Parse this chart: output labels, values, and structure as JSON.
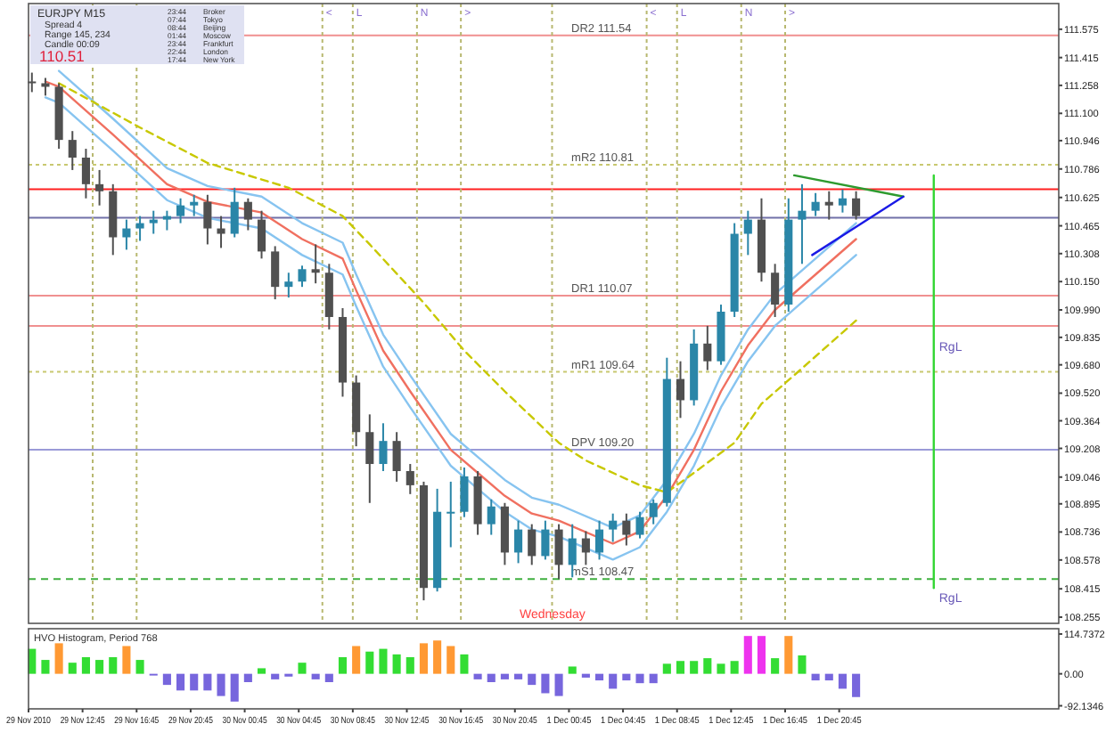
{
  "chart_data": [
    {
      "type": "candlestick",
      "title": "EURJPY  M15",
      "tick_labels": "y",
      "xlim": [
        "2010-11-29T08:45",
        "2010-12-02T13:00"
      ],
      "ylim": [
        108.22,
        111.72
      ],
      "yticks": [
        111.575,
        111.415,
        111.258,
        {
          "value": 111.1,
          "label": "111.100"
        },
        110.946,
        110.786,
        110.625,
        110.465,
        110.308,
        {
          "value": 110.15,
          "label": "110.150"
        },
        {
          "value": 109.99,
          "label": "109.990"
        },
        109.835,
        {
          "value": 109.68,
          "label": "109.680"
        },
        {
          "value": 109.52,
          "label": "109.520"
        },
        109.364,
        109.208,
        109.046,
        108.895,
        108.736,
        108.578,
        108.415,
        108.255
      ],
      "colors": [
        "#505050",
        "#505050",
        "#505050",
        "#505050",
        "#505050",
        "#505050",
        "#505050",
        "#2a86a8",
        "#2a86a8",
        "#2a86a8",
        "#2a86a8",
        "#2a86a8",
        "#2a86a8",
        "#505050",
        "#505050",
        "#2a86a8",
        "#505050",
        "#505050",
        "#505050",
        "#2a86a8",
        "#2a86a8",
        "#505050",
        "#505050",
        "#505050",
        "#505050",
        "#505050",
        "#2a86a8",
        "#505050",
        "#505050",
        "#505050",
        "#2a86a8",
        "#2a86a8",
        "#2a86a8",
        "#505050",
        "#2a86a8",
        "#505050",
        "#2a86a8",
        "#505050",
        "#2a86a8",
        "#505050",
        "#2a86a8",
        "#505050",
        "#2a86a8",
        "#2a86a8",
        "#505050",
        "#2a86a8",
        "#2a86a8",
        "#2a86a8",
        "#505050",
        "#2a86a8",
        "#505050",
        "#2a86a8",
        "#2a86a8",
        "#2a86a8",
        "#505050",
        "#505050",
        "#2a86a8",
        "#2a86a8",
        "#2a86a8",
        "#505050",
        "#2a86a8",
        "#505050"
      ],
      "x": [
        "2010-11-29T09:00",
        "2010-11-29T10:00",
        "2010-11-29T11:00",
        "2010-11-29T12:00",
        "2010-11-29T13:00",
        "2010-11-29T14:00",
        "2010-11-29T15:00",
        "2010-11-29T16:00",
        "2010-11-29T17:00",
        "2010-11-29T18:00",
        "2010-11-29T19:00",
        "2010-11-29T20:00",
        "2010-11-29T21:00",
        "2010-11-29T22:00",
        "2010-11-29T23:00",
        "2010-11-30T00:00",
        "2010-11-30T01:00",
        "2010-11-30T02:00",
        "2010-11-30T03:00",
        "2010-11-30T04:00",
        "2010-11-30T05:00",
        "2010-11-30T06:00",
        "2010-11-30T07:00",
        "2010-11-30T08:00",
        "2010-11-30T09:00",
        "2010-11-30T10:00",
        "2010-11-30T11:00",
        "2010-11-30T12:00",
        "2010-11-30T13:00",
        "2010-11-30T14:00",
        "2010-11-30T15:00",
        "2010-11-30T16:00",
        "2010-11-30T17:00",
        "2010-11-30T18:00",
        "2010-11-30T19:00",
        "2010-11-30T20:00",
        "2010-11-30T21:00",
        "2010-11-30T22:00",
        "2010-11-30T23:00",
        "2010-12-01T00:00",
        "2010-12-01T01:00",
        "2010-12-01T02:00",
        "2010-12-01T03:00",
        "2010-12-01T04:00",
        "2010-12-01T05:00",
        "2010-12-01T06:00",
        "2010-12-01T07:00",
        "2010-12-01T08:00",
        "2010-12-01T09:00",
        "2010-12-01T10:00",
        "2010-12-01T11:00",
        "2010-12-01T12:00",
        "2010-12-01T13:00",
        "2010-12-01T14:00",
        "2010-12-01T15:00",
        "2010-12-01T16:00",
        "2010-12-01T17:00",
        "2010-12-01T18:00",
        "2010-12-01T19:00",
        "2010-12-01T20:00",
        "2010-12-01T21:00",
        "2010-12-01T22:00"
      ],
      "ohlc": [
        [
          111.28,
          111.33,
          111.22,
          111.27
        ],
        [
          111.27,
          111.3,
          111.2,
          111.25
        ],
        [
          111.25,
          111.27,
          110.9,
          110.95
        ],
        [
          110.95,
          111.0,
          110.78,
          110.85
        ],
        [
          110.85,
          110.9,
          110.62,
          110.7
        ],
        [
          110.7,
          110.78,
          110.58,
          110.66
        ],
        [
          110.66,
          110.7,
          110.3,
          110.4
        ],
        [
          110.4,
          110.5,
          110.33,
          110.45
        ],
        [
          110.45,
          110.52,
          110.38,
          110.48
        ],
        [
          110.48,
          110.55,
          110.42,
          110.5
        ],
        [
          110.5,
          110.55,
          110.44,
          110.52
        ],
        [
          110.52,
          110.62,
          110.48,
          110.58
        ],
        [
          110.58,
          110.64,
          110.52,
          110.6
        ],
        [
          110.6,
          110.64,
          110.36,
          110.45
        ],
        [
          110.45,
          110.52,
          110.34,
          110.42
        ],
        [
          110.42,
          110.68,
          110.4,
          110.6
        ],
        [
          110.6,
          110.62,
          110.44,
          110.5
        ],
        [
          110.5,
          110.55,
          110.28,
          110.32
        ],
        [
          110.32,
          110.35,
          110.05,
          110.12
        ],
        [
          110.12,
          110.2,
          110.06,
          110.15
        ],
        [
          110.15,
          110.24,
          110.12,
          110.22
        ],
        [
          110.22,
          110.36,
          110.14,
          110.2
        ],
        [
          110.2,
          110.25,
          109.88,
          109.95
        ],
        [
          109.95,
          110.0,
          109.5,
          109.58
        ],
        [
          109.58,
          109.62,
          109.22,
          109.3
        ],
        [
          109.3,
          109.4,
          108.9,
          109.12
        ],
        [
          109.12,
          109.35,
          109.08,
          109.25
        ],
        [
          109.25,
          109.3,
          109.02,
          109.08
        ],
        [
          109.08,
          109.12,
          108.95,
          109.0
        ],
        [
          109.0,
          109.02,
          108.35,
          108.42
        ],
        [
          108.42,
          108.98,
          108.4,
          108.85
        ],
        [
          108.85,
          109.02,
          108.65,
          108.85
        ],
        [
          108.85,
          109.1,
          108.82,
          109.05
        ],
        [
          109.05,
          109.08,
          108.72,
          108.78
        ],
        [
          108.78,
          108.92,
          108.72,
          108.88
        ],
        [
          108.88,
          108.9,
          108.55,
          108.62
        ],
        [
          108.62,
          108.8,
          108.56,
          108.75
        ],
        [
          108.75,
          108.78,
          108.55,
          108.6
        ],
        [
          108.6,
          108.8,
          108.58,
          108.75
        ],
        [
          108.75,
          108.78,
          108.47,
          108.55
        ],
        [
          108.55,
          108.78,
          108.48,
          108.7
        ],
        [
          108.7,
          108.74,
          108.55,
          108.62
        ],
        [
          108.62,
          108.8,
          108.58,
          108.75
        ],
        [
          108.75,
          108.84,
          108.68,
          108.8
        ],
        [
          108.8,
          108.84,
          108.66,
          108.72
        ],
        [
          108.72,
          108.85,
          108.7,
          108.82
        ],
        [
          108.82,
          108.92,
          108.78,
          108.9
        ],
        [
          108.9,
          109.72,
          108.88,
          109.6
        ],
        [
          109.6,
          109.7,
          109.38,
          109.48
        ],
        [
          109.48,
          109.88,
          109.45,
          109.8
        ],
        [
          109.8,
          109.9,
          109.65,
          109.7
        ],
        [
          109.7,
          110.02,
          109.68,
          109.98
        ],
        [
          109.98,
          110.48,
          109.95,
          110.42
        ],
        [
          110.42,
          110.55,
          110.3,
          110.5
        ],
        [
          110.5,
          110.62,
          110.15,
          110.2
        ],
        [
          110.2,
          110.25,
          109.95,
          110.02
        ],
        [
          110.02,
          110.62,
          109.98,
          110.5
        ],
        [
          110.5,
          110.7,
          110.25,
          110.55
        ],
        [
          110.55,
          110.65,
          110.52,
          110.6
        ],
        [
          110.6,
          110.66,
          110.5,
          110.58
        ],
        [
          110.58,
          110.67,
          110.54,
          110.62
        ],
        [
          110.62,
          110.66,
          110.5,
          110.52
        ]
      ],
      "series": [
        {
          "type": "line",
          "color": "#87c4f0",
          "line_style": "solid",
          "x": [
            "2010-11-29T11:00",
            "2010-11-29T15:00",
            "2010-11-29T19:00",
            "2010-11-29T22:00",
            "2010-11-30T02:00",
            "2010-11-30T05:00",
            "2010-11-30T08:00",
            "2010-11-30T09:00",
            "2010-11-30T11:00",
            "2010-11-30T13:00",
            "2010-11-30T16:00",
            "2010-11-30T18:00",
            "2010-11-30T20:00",
            "2010-11-30T22:00",
            "2010-12-01T00:00",
            "2010-12-01T04:00",
            "2010-12-01T06:00",
            "2010-12-01T08:00",
            "2010-12-01T10:00",
            "2010-12-01T12:00",
            "2010-12-01T14:00",
            "2010-12-01T16:00",
            "2010-12-01T19:00",
            "2010-12-01T22:00"
          ],
          "values": [
            111.34,
            111.07,
            110.79,
            110.69,
            110.63,
            110.48,
            110.37,
            110.19,
            109.85,
            109.62,
            109.29,
            109.16,
            109.03,
            108.93,
            108.89,
            108.76,
            108.83,
            109.03,
            109.29,
            109.62,
            109.88,
            110.08,
            110.28,
            110.48
          ]
        },
        {
          "type": "line",
          "color": "#f07060",
          "line_style": "solid",
          "x": [
            "2010-11-29T10:00",
            "2010-11-29T11:00",
            "2010-11-29T15:00",
            "2010-11-29T19:00",
            "2010-11-29T22:00",
            "2010-11-30T02:00",
            "2010-11-30T05:00",
            "2010-11-30T08:00",
            "2010-11-30T09:00",
            "2010-11-30T11:00",
            "2010-11-30T13:00",
            "2010-11-30T16:00",
            "2010-11-30T18:00",
            "2010-11-30T20:00",
            "2010-11-30T22:00",
            "2010-12-01T00:00",
            "2010-12-01T04:00",
            "2010-12-01T06:00",
            "2010-12-01T08:00",
            "2010-12-01T10:00",
            "2010-12-01T12:00",
            "2010-12-01T14:00",
            "2010-12-01T16:00",
            "2010-12-01T19:00",
            "2010-12-01T22:00"
          ],
          "values": [
            111.28,
            111.25,
            110.98,
            110.7,
            110.6,
            110.54,
            110.39,
            110.28,
            110.1,
            109.76,
            109.53,
            109.2,
            109.07,
            108.94,
            108.84,
            108.8,
            108.67,
            108.74,
            108.94,
            109.2,
            109.53,
            109.79,
            109.99,
            110.19,
            110.39
          ]
        },
        {
          "type": "line",
          "color": "#87c4f0",
          "line_style": "solid",
          "x": [
            "2010-11-29T10:00",
            "2010-11-29T11:00",
            "2010-11-29T15:00",
            "2010-11-29T19:00",
            "2010-11-29T22:00",
            "2010-11-30T02:00",
            "2010-11-30T05:00",
            "2010-11-30T08:00",
            "2010-11-30T09:00",
            "2010-11-30T11:00",
            "2010-11-30T13:00",
            "2010-11-30T16:00",
            "2010-11-30T18:00",
            "2010-11-30T20:00",
            "2010-11-30T22:00",
            "2010-12-01T00:00",
            "2010-12-01T04:00",
            "2010-12-01T06:00",
            "2010-12-01T08:00",
            "2010-12-01T10:00",
            "2010-12-01T12:00",
            "2010-12-01T14:00",
            "2010-12-01T16:00",
            "2010-12-01T19:00",
            "2010-12-01T22:00"
          ],
          "values": [
            111.19,
            111.16,
            110.89,
            110.61,
            110.51,
            110.45,
            110.3,
            110.19,
            110.01,
            109.67,
            109.44,
            109.11,
            108.98,
            108.85,
            108.75,
            108.71,
            108.58,
            108.65,
            108.85,
            109.11,
            109.44,
            109.7,
            109.9,
            110.1,
            110.3
          ]
        },
        {
          "type": "line",
          "color": "#c8c800",
          "line_style": "dashed",
          "x": [
            "2010-11-29T11:00",
            "2010-11-29T17:00",
            "2010-11-29T22:00",
            "2010-11-30T04:00",
            "2010-11-30T08:00",
            "2010-11-30T10:00",
            "2010-11-30T14:00",
            "2010-11-30T17:00",
            "2010-11-30T20:00",
            "2010-12-01T00:00",
            "2010-12-01T02:00",
            "2010-12-01T06:00",
            "2010-12-01T08:00",
            "2010-12-01T10:00",
            "2010-12-01T13:00",
            "2010-12-01T15:00",
            "2010-12-01T18:00",
            "2010-12-01T22:00"
          ],
          "values": [
            111.27,
            111.02,
            110.82,
            110.68,
            110.52,
            110.36,
            110.03,
            109.76,
            109.53,
            109.24,
            109.14,
            109.0,
            108.96,
            109.07,
            109.24,
            109.46,
            109.66,
            109.93
          ]
        },
        {
          "type": "line",
          "color": "#2e9a2e",
          "line_style": "solid",
          "x": [
            "2010-12-01T17:25",
            "2010-12-02T01:30"
          ],
          "values": [
            110.75,
            110.63
          ]
        },
        {
          "type": "line",
          "color": "#1a1ae6",
          "line_style": "solid",
          "x": [
            "2010-12-01T18:45",
            "2010-12-02T01:30"
          ],
          "values": [
            110.3,
            110.63
          ]
        },
        {
          "type": "line",
          "color": "#33d633",
          "line_style": "solid",
          "x": [
            "2010-12-02T03:45",
            "2010-12-02T03:45"
          ],
          "values": [
            110.75,
            108.42
          ]
        }
      ],
      "ref_lines": [
        {
          "axis": "y",
          "value": 111.54,
          "label": "DR2  111.54",
          "color": "#f09090",
          "line_style": "solid"
        },
        {
          "axis": "y",
          "value": 110.81,
          "label": "mR2  110.81",
          "color": "#c8c870",
          "line_style": "dotted"
        },
        {
          "axis": "y",
          "value": 110.671,
          "color": "#ff2020",
          "line_style": "solid"
        },
        {
          "axis": "y",
          "value": 110.51,
          "color": "#7070a8",
          "line_style": "solid"
        },
        {
          "axis": "y",
          "value": 110.07,
          "label": "DR1  110.07",
          "color": "#f09090",
          "line_style": "solid"
        },
        {
          "axis": "y",
          "value": 109.9,
          "color": "#f09090",
          "line_style": "solid"
        },
        {
          "axis": "y",
          "value": 109.64,
          "label": "mR1  109.64",
          "color": "#c8c870",
          "line_style": "dotted"
        },
        {
          "axis": "y",
          "value": 109.2,
          "label": "DPV  109.20",
          "color": "#9a9ad8",
          "line_style": "solid"
        },
        {
          "axis": "y",
          "value": 108.47,
          "label": "mS1  108.47",
          "color": "#40b040",
          "line_style": "dashed"
        },
        {
          "axis": "x",
          "value": "2010-11-29T13:30",
          "color": "#b8b870",
          "line_style": "dotted"
        },
        {
          "axis": "x",
          "value": "2010-11-29T16:45",
          "color": "#b8b870",
          "line_style": "dotted"
        },
        {
          "axis": "x",
          "value": "2010-11-30T06:30",
          "label": "<",
          "color": "#b8b870",
          "line_style": "dotted"
        },
        {
          "axis": "x",
          "value": "2010-11-30T08:45",
          "label": "L",
          "color": "#b8b870",
          "line_style": "dotted"
        },
        {
          "axis": "x",
          "value": "2010-11-30T13:30",
          "label": "N",
          "color": "#b8b870",
          "line_style": "dotted"
        },
        {
          "axis": "x",
          "value": "2010-11-30T16:45",
          "label": ">",
          "color": "#b8b870",
          "line_style": "dotted"
        },
        {
          "axis": "x",
          "value": "2010-11-30T23:30",
          "color": "#b8b870",
          "line_style": "dotted"
        },
        {
          "axis": "x",
          "value": "2010-12-01T06:30",
          "label": "<",
          "color": "#b8b870",
          "line_style": "dotted"
        },
        {
          "axis": "x",
          "value": "2010-12-01T08:45",
          "label": "L",
          "color": "#b8b870",
          "line_style": "dotted"
        },
        {
          "axis": "x",
          "value": "2010-12-01T13:30",
          "label": "N",
          "color": "#b8b870",
          "line_style": "dotted"
        },
        {
          "axis": "x",
          "value": "2010-12-01T16:45",
          "label": ">",
          "color": "#b8b870",
          "line_style": "dotted"
        }
      ],
      "annotations": [
        "Spread  4",
        "Range  145, 234",
        "Candle  00:09",
        "110.51",
        "23:44 Broker",
        "07:44 Tokyo",
        "08:44 Beijing",
        "01:44 Moscow",
        "23:44 Frankfurt",
        "22:44 London",
        "17:44 New York",
        {
          "text": "Wednesday",
          "x": "2010-12-01T00:00",
          "y": 108.27
        },
        {
          "text": "RgL",
          "x": "2010-12-02T03:45",
          "y": 109.84
        },
        {
          "text": "RgL",
          "x": "2010-12-02T03:45",
          "y": 108.42
        }
      ]
    },
    {
      "type": "bar",
      "title": "HVO Histogram, Period 768",
      "xlim": [
        "2010-11-29T08:45",
        "2010-12-02T13:00"
      ],
      "xticks": [
        {
          "value": "2010-11-29T08:45",
          "label": "29 Nov 2010"
        },
        {
          "value": "2010-11-29T12:45",
          "label": "29 Nov 12:45"
        },
        {
          "value": "2010-11-29T16:45",
          "label": "29 Nov 16:45"
        },
        {
          "value": "2010-11-29T20:45",
          "label": "29 Nov 20:45"
        },
        {
          "value": "2010-11-30T00:45",
          "label": "30 Nov 00:45"
        },
        {
          "value": "2010-11-30T04:45",
          "label": "30 Nov 04:45"
        },
        {
          "value": "2010-11-30T08:45",
          "label": "30 Nov 08:45"
        },
        {
          "value": "2010-11-30T12:45",
          "label": "30 Nov 12:45"
        },
        {
          "value": "2010-11-30T16:45",
          "label": "30 Nov 16:45"
        },
        {
          "value": "2010-11-30T20:45",
          "label": "30 Nov 20:45"
        },
        {
          "value": "2010-12-01T00:45",
          "label": "1 Dec 00:45"
        },
        {
          "value": "2010-12-01T04:45",
          "label": "1 Dec 04:45"
        },
        {
          "value": "2010-12-01T08:45",
          "label": "1 Dec 08:45"
        },
        {
          "value": "2010-12-01T12:45",
          "label": "1 Dec 12:45"
        },
        {
          "value": "2010-12-01T16:45",
          "label": "1 Dec 16:45"
        },
        {
          "value": "2010-12-01T20:45",
          "label": "1 Dec 20:45"
        }
      ],
      "ylim": [
        -101,
        130
      ],
      "yticks": [
        114.7372,
        {
          "value": 0,
          "label": "0.00"
        },
        -92.1346
      ],
      "x": [
        "2010-11-29T09:00",
        "2010-11-29T10:00",
        "2010-11-29T11:00",
        "2010-11-29T12:00",
        "2010-11-29T13:00",
        "2010-11-29T14:00",
        "2010-11-29T15:00",
        "2010-11-29T16:00",
        "2010-11-29T17:00",
        "2010-11-29T18:00",
        "2010-11-29T19:00",
        "2010-11-29T20:00",
        "2010-11-29T21:00",
        "2010-11-29T22:00",
        "2010-11-29T23:00",
        "2010-11-30T00:00",
        "2010-11-30T01:00",
        "2010-11-30T02:00",
        "2010-11-30T03:00",
        "2010-11-30T04:00",
        "2010-11-30T05:00",
        "2010-11-30T06:00",
        "2010-11-30T07:00",
        "2010-11-30T08:00",
        "2010-11-30T09:00",
        "2010-11-30T10:00",
        "2010-11-30T11:00",
        "2010-11-30T12:00",
        "2010-11-30T13:00",
        "2010-11-30T14:00",
        "2010-11-30T15:00",
        "2010-11-30T16:00",
        "2010-11-30T17:00",
        "2010-11-30T18:00",
        "2010-11-30T19:00",
        "2010-11-30T20:00",
        "2010-11-30T21:00",
        "2010-11-30T22:00",
        "2010-11-30T23:00",
        "2010-12-01T00:00",
        "2010-12-01T01:00",
        "2010-12-01T02:00",
        "2010-12-01T03:00",
        "2010-12-01T04:00",
        "2010-12-01T05:00",
        "2010-12-01T06:00",
        "2010-12-01T07:00",
        "2010-12-01T08:00",
        "2010-12-01T09:00",
        "2010-12-01T10:00",
        "2010-12-01T11:00",
        "2010-12-01T12:00",
        "2010-12-01T13:00",
        "2010-12-01T14:00",
        "2010-12-01T15:00",
        "2010-12-01T16:00",
        "2010-12-01T17:00",
        "2010-12-01T18:00",
        "2010-12-01T19:00",
        "2010-12-01T20:00",
        "2010-12-01T21:00",
        "2010-12-01T22:00"
      ],
      "values": [
        72,
        40,
        88,
        32,
        48,
        40,
        48,
        80,
        40,
        -5,
        -32,
        -48,
        -48,
        -48,
        -64,
        -80,
        -24,
        16,
        -16,
        -8,
        32,
        -16,
        -24,
        48,
        80,
        64,
        72,
        56,
        48,
        88,
        96,
        80,
        56,
        -16,
        -24,
        -16,
        -16,
        -32,
        -56,
        -64,
        21,
        -11,
        -19,
        -43,
        -19,
        -27,
        -27,
        29,
        37,
        37,
        45,
        29,
        37,
        109,
        109,
        45,
        109,
        53,
        -19,
        -19,
        -43,
        -67
      ],
      "colors": [
        "#33dd33",
        "#33dd33",
        "#ff9933",
        "#33dd33",
        "#33dd33",
        "#33dd33",
        "#33dd33",
        "#ff9933",
        "#33dd33",
        "#7766dd",
        "#7766dd",
        "#7766dd",
        "#7766dd",
        "#7766dd",
        "#7766dd",
        "#7766dd",
        "#7766dd",
        "#33dd33",
        "#7766dd",
        "#7766dd",
        "#33dd33",
        "#7766dd",
        "#7766dd",
        "#33dd33",
        "#ff9933",
        "#33dd33",
        "#33dd33",
        "#33dd33",
        "#33dd33",
        "#ff9933",
        "#ff9933",
        "#ff9933",
        "#33dd33",
        "#7766dd",
        "#7766dd",
        "#7766dd",
        "#7766dd",
        "#7766dd",
        "#7766dd",
        "#7766dd",
        "#33dd33",
        "#7766dd",
        "#7766dd",
        "#7766dd",
        "#7766dd",
        "#7766dd",
        "#7766dd",
        "#33dd33",
        "#33dd33",
        "#33dd33",
        "#33dd33",
        "#33dd33",
        "#33dd33",
        "#ee33ee",
        "#ee33ee",
        "#33dd33",
        "#ff9933",
        "#33dd33",
        "#7766dd",
        "#7766dd",
        "#7766dd",
        "#7766dd"
      ]
    }
  ]
}
